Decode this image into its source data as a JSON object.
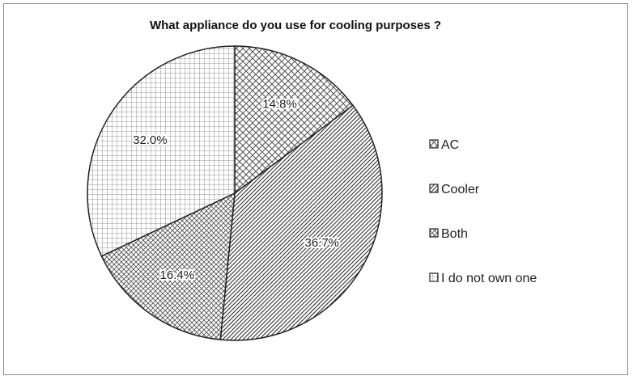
{
  "chart_data": {
    "type": "pie",
    "title": "What appliance do you use for cooling purposes ?",
    "categories": [
      "AC",
      "Cooler",
      "Both",
      "I do not own one"
    ],
    "values": [
      14.8,
      36.7,
      16.4,
      32.0
    ],
    "data_labels": [
      "14.8%",
      "36.7%",
      "16.4%",
      "32.0%"
    ],
    "legend_position": "right",
    "start_angle_deg": 0,
    "direction": "clockwise",
    "fill_patterns": [
      "cross-hatch",
      "diagonal-lines",
      "diagonal-cross",
      "grid"
    ]
  }
}
